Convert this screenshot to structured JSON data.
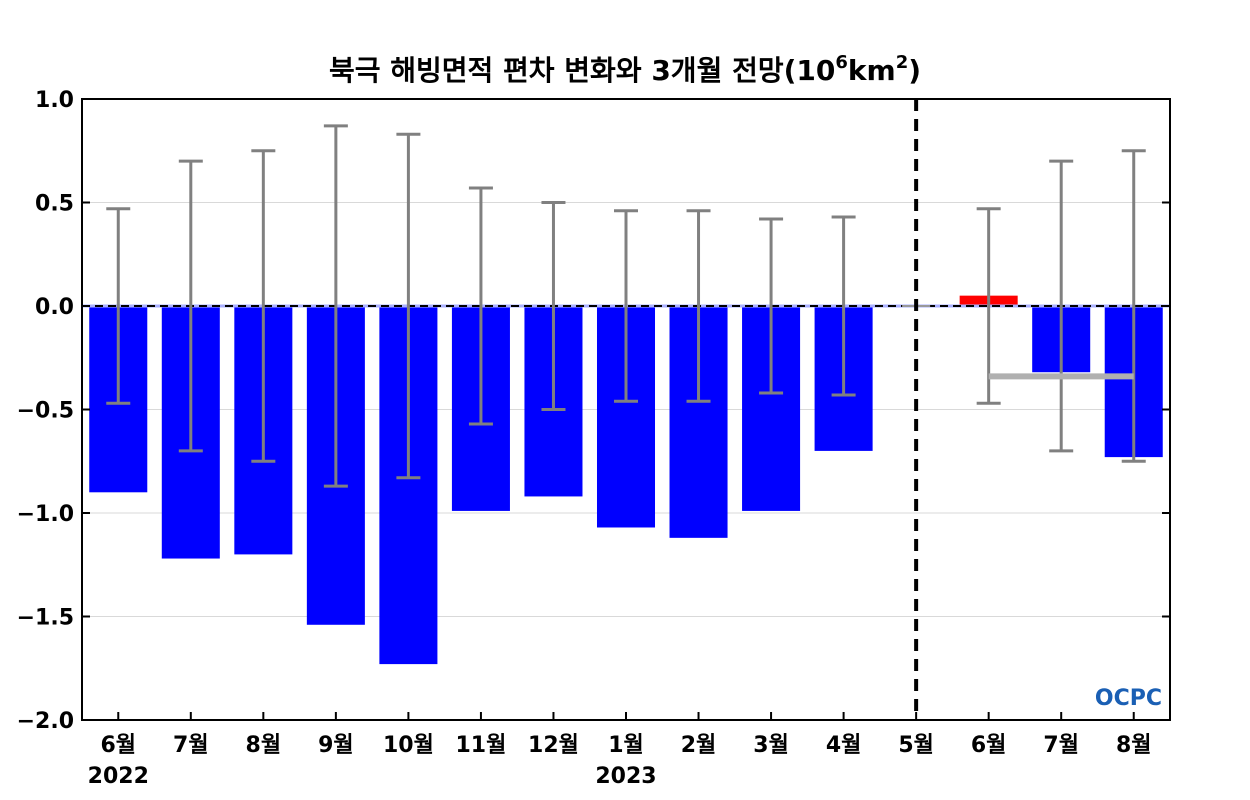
{
  "chart_data": {
    "type": "bar",
    "title": "북극 해빙면적 편차 변화와 3개월 전망(10⁶km²)",
    "title_base": "북극 해빙면적 편차 변화와 3개월 전망(10",
    "title_exp": "6",
    "title_unit": "km",
    "title_unit_exp": "2",
    "title_close": ")",
    "categories": [
      "6월",
      "7월",
      "8월",
      "9월",
      "10월",
      "11월",
      "12월",
      "1월",
      "2월",
      "3월",
      "4월",
      "5월",
      "6월",
      "7월",
      "8월"
    ],
    "year_labels": [
      {
        "text": "2022",
        "category_index": 0
      },
      {
        "text": "2023",
        "category_index": 7
      }
    ],
    "ylim": [
      -2.0,
      1.0
    ],
    "yticks": [
      1.0,
      0.5,
      0.0,
      -0.5,
      -1.0,
      -1.5,
      -2.0
    ],
    "ytick_labels": [
      "1.0",
      "0.5",
      "0.0",
      "−0.5",
      "−1.0",
      "−1.5",
      "−2.0"
    ],
    "grid": "horizontal",
    "series": [
      {
        "values": [
          -0.9,
          -1.22,
          -1.2,
          -1.54,
          -1.73,
          -0.99,
          -0.92,
          -1.07,
          -1.12,
          -0.99,
          -0.7,
          null,
          0.05,
          -0.32,
          -0.73
        ],
        "colors": [
          "#0000ff",
          "#0000ff",
          "#0000ff",
          "#0000ff",
          "#0000ff",
          "#0000ff",
          "#0000ff",
          "#0000ff",
          "#0000ff",
          "#0000ff",
          "#0000ff",
          null,
          "#ff0000",
          "#0000ff",
          "#0000ff"
        ]
      }
    ],
    "error_bars": [
      0.47,
      0.7,
      0.75,
      0.87,
      0.83,
      0.57,
      0.5,
      0.46,
      0.46,
      0.42,
      0.43,
      null,
      0.47,
      0.7,
      0.75
    ],
    "forecast_mean": {
      "value": -0.34,
      "from_index": 12,
      "to_index": 14
    },
    "divider_index": 11,
    "colors": {
      "bar": "#0000ff",
      "bar_positive": "#ff0000",
      "error_bar": "#808080",
      "forecast_mean": "#b0b0b0",
      "grid": "#d9d9d9"
    },
    "logo": "OCPC"
  }
}
